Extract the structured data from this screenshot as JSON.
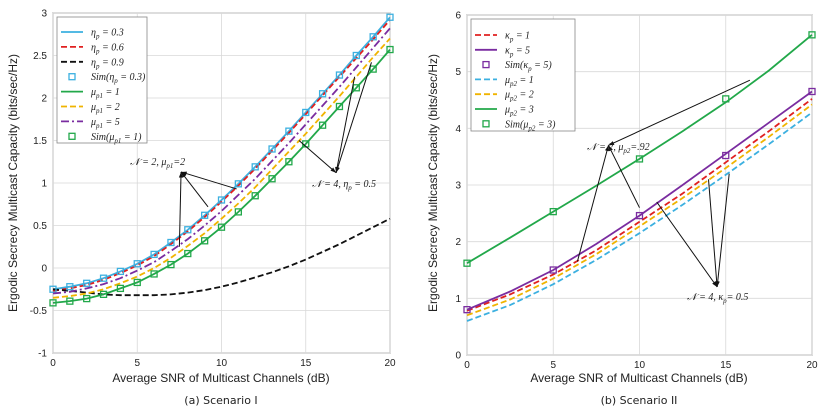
{
  "colors": {
    "eta03": "#3cb0e0",
    "eta06": "#e02020",
    "eta09": "#111111",
    "mu1": "#22a84a",
    "mu2": "#f0b400",
    "mu5": "#7a2ca0",
    "kappa1": "#e02020",
    "kappa5": "#7a2ca0",
    "mu2_1": "#3cb0e0",
    "mu2_2": "#f0b400",
    "mu2_3": "#22a84a"
  },
  "panels": {
    "left": {
      "caption": "(a) Scenario I",
      "ylabel": "Ergodic Secrecy Multicast Capacity (bits/sec/Hz)",
      "xlabel": "Average SNR of Multicast Channels (dB)",
      "annotation_a": "𝒩 = 2, μ",
      "annotation_a_sub": "p1",
      "annotation_a_tail": "=2",
      "annotation_b": "𝒩 = 4, η",
      "annotation_b_sub": "p",
      "annotation_b_tail": " = 0.5",
      "legend": [
        {
          "pre": "η",
          "sub": "p",
          "post": " = 0.3"
        },
        {
          "pre": "η",
          "sub": "p",
          "post": " = 0.6"
        },
        {
          "pre": "η",
          "sub": "p",
          "post": " = 0.9"
        },
        {
          "pre": "Sim(η",
          "sub": "p",
          "post": " = 0.3)"
        },
        {
          "pre": "μ",
          "sub": "p1",
          "post": " = 1"
        },
        {
          "pre": "μ",
          "sub": "p1",
          "post": " = 2"
        },
        {
          "pre": "μ",
          "sub": "p1",
          "post": " = 5"
        },
        {
          "pre": "Sim(μ",
          "sub": "p1",
          "post": " = 1)"
        }
      ]
    },
    "right": {
      "caption": "(b) Scenario II",
      "ylabel": "Ergodic Secrecy Multicast Capacity (bits/sec/Hz)",
      "xlabel": "Average SNR of Multicast Channels (dB)",
      "annotation_a": "𝒩 = 2, μ",
      "annotation_a_sub": "p2",
      "annotation_a_tail": "=.92",
      "annotation_b": "𝒩 = 4, κ",
      "annotation_b_sub": "p",
      "annotation_b_tail": "= 0.5",
      "legend": [
        {
          "pre": "κ",
          "sub": "p",
          "post": " = 1"
        },
        {
          "pre": "κ",
          "sub": "p",
          "post": " = 5"
        },
        {
          "pre": "Sim(κ",
          "sub": "p",
          "post": " = 5)"
        },
        {
          "pre": "μ",
          "sub": "p2",
          "post": " = 1"
        },
        {
          "pre": "μ",
          "sub": "p2",
          "post": " = 2"
        },
        {
          "pre": "μ",
          "sub": "p2",
          "post": " = 3"
        },
        {
          "pre": "Sim(μ",
          "sub": "p2",
          "post": " = 3)"
        }
      ]
    }
  },
  "chart_data": [
    {
      "type": "line",
      "title": "(a) Scenario I",
      "xlabel": "Average SNR of Multicast Channels (dB)",
      "ylabel": "Ergodic Secrecy Multicast Capacity (bits/sec/Hz)",
      "xlim": [
        0,
        20
      ],
      "ylim": [
        -1,
        3
      ],
      "xticks": [
        0,
        5,
        10,
        15,
        20
      ],
      "yticks": [
        -1,
        -0.5,
        0,
        0.5,
        1,
        1.5,
        2,
        2.5,
        3
      ],
      "x": [
        0,
        1,
        2,
        3,
        4,
        5,
        6,
        7,
        8,
        9,
        10,
        11,
        12,
        13,
        14,
        15,
        16,
        17,
        18,
        19,
        20
      ],
      "series": [
        {
          "name": "eta_p = 0.3",
          "style": "solid",
          "color_key": "eta03",
          "values": [
            -0.25,
            -0.22,
            -0.18,
            -0.12,
            -0.04,
            0.05,
            0.16,
            0.3,
            0.45,
            0.62,
            0.8,
            0.99,
            1.19,
            1.4,
            1.61,
            1.83,
            2.05,
            2.27,
            2.5,
            2.72,
            2.95
          ]
        },
        {
          "name": "eta_p = 0.6",
          "style": "dash",
          "color_key": "eta06",
          "values": [
            -0.27,
            -0.24,
            -0.2,
            -0.14,
            -0.06,
            0.03,
            0.14,
            0.28,
            0.43,
            0.6,
            0.78,
            0.97,
            1.17,
            1.38,
            1.59,
            1.81,
            2.03,
            2.25,
            2.47,
            2.69,
            2.92
          ]
        },
        {
          "name": "eta_p = 0.9",
          "style": "dash",
          "color_key": "eta09",
          "values": [
            -0.25,
            -0.27,
            -0.29,
            -0.31,
            -0.32,
            -0.32,
            -0.32,
            -0.31,
            -0.29,
            -0.26,
            -0.22,
            -0.17,
            -0.11,
            -0.05,
            0.02,
            0.1,
            0.19,
            0.28,
            0.38,
            0.48,
            0.58
          ]
        },
        {
          "name": "Sim(eta_p = 0.3)",
          "style": "marker",
          "color_key": "eta03",
          "values": [
            -0.25,
            -0.22,
            -0.18,
            -0.12,
            -0.04,
            0.05,
            0.16,
            0.3,
            0.45,
            0.62,
            0.8,
            0.99,
            1.19,
            1.4,
            1.61,
            1.83,
            2.05,
            2.27,
            2.5,
            2.72,
            2.95
          ]
        },
        {
          "name": "mu_p1 = 1",
          "style": "solid",
          "color_key": "mu1",
          "values": [
            -0.41,
            -0.39,
            -0.36,
            -0.31,
            -0.24,
            -0.17,
            -0.07,
            0.04,
            0.17,
            0.32,
            0.48,
            0.66,
            0.85,
            1.05,
            1.25,
            1.46,
            1.68,
            1.9,
            2.12,
            2.34,
            2.57
          ]
        },
        {
          "name": "mu_p1 = 2",
          "style": "dash",
          "color_key": "mu2",
          "values": [
            -0.35,
            -0.33,
            -0.3,
            -0.25,
            -0.18,
            -0.1,
            0.0,
            0.12,
            0.26,
            0.41,
            0.58,
            0.76,
            0.95,
            1.16,
            1.37,
            1.58,
            1.8,
            2.02,
            2.25,
            2.48,
            2.7
          ]
        },
        {
          "name": "mu_p1 = 5",
          "style": "dashdot",
          "color_key": "mu5",
          "values": [
            -0.3,
            -0.28,
            -0.24,
            -0.19,
            -0.12,
            -0.03,
            0.07,
            0.2,
            0.34,
            0.5,
            0.67,
            0.86,
            1.05,
            1.26,
            1.47,
            1.69,
            1.91,
            2.13,
            2.36,
            2.59,
            2.82
          ]
        },
        {
          "name": "Sim(mu_p1 = 1)",
          "style": "marker",
          "color_key": "mu1",
          "values": [
            -0.41,
            -0.39,
            -0.36,
            -0.31,
            -0.24,
            -0.17,
            -0.07,
            0.04,
            0.17,
            0.32,
            0.48,
            0.66,
            0.85,
            1.05,
            1.25,
            1.46,
            1.68,
            1.9,
            2.12,
            2.34,
            2.57
          ]
        }
      ],
      "annotations": [
        {
          "text": "N = 2, mu_p1=2",
          "anchor": [
            7.6,
            1.13
          ],
          "targets": [
            [
              7.5,
              0.25
            ],
            [
              9.2,
              0.72
            ],
            [
              10.9,
              0.93
            ]
          ]
        },
        {
          "text": "N = 4, eta_p = 0.5",
          "anchor": [
            16.8,
            1.12
          ],
          "targets": [
            [
              14.6,
              1.5
            ],
            [
              17.9,
              2.25
            ],
            [
              18.9,
              2.42
            ]
          ]
        }
      ]
    },
    {
      "type": "line",
      "title": "(b) Scenario II",
      "xlabel": "Average SNR of Multicast Channels (dB)",
      "ylabel": "Ergodic Secrecy Multicast Capacity (bits/sec/Hz)",
      "xlim": [
        0,
        20
      ],
      "ylim": [
        0,
        6
      ],
      "xticks": [
        0,
        5,
        10,
        15,
        20
      ],
      "yticks": [
        0,
        1,
        2,
        3,
        4,
        5,
        6
      ],
      "x": [
        0,
        2.5,
        5,
        7.5,
        10,
        12.5,
        15,
        17.5,
        20
      ],
      "series": [
        {
          "name": "kappa_p = 1",
          "style": "dash",
          "color_key": "kappa1",
          "values": [
            0.78,
            1.07,
            1.42,
            1.85,
            2.35,
            2.85,
            3.4,
            3.95,
            4.52
          ]
        },
        {
          "name": "kappa_p = 5",
          "style": "solid",
          "color_key": "kappa5",
          "values": [
            0.8,
            1.12,
            1.5,
            1.96,
            2.46,
            3.0,
            3.55,
            4.1,
            4.65
          ]
        },
        {
          "name": "Sim(kappa_p = 5)",
          "style": "marker",
          "color_key": "kappa5",
          "x": [
            0,
            5,
            10,
            15,
            20
          ],
          "values": [
            0.8,
            1.5,
            2.46,
            3.52,
            4.65
          ]
        },
        {
          "name": "mu_p2 = 1",
          "style": "dash",
          "color_key": "mu2_1",
          "values": [
            0.6,
            0.88,
            1.25,
            1.68,
            2.15,
            2.65,
            3.18,
            3.72,
            4.28
          ]
        },
        {
          "name": "mu_p2 = 2",
          "style": "dash",
          "color_key": "mu2_2",
          "values": [
            0.7,
            0.98,
            1.35,
            1.78,
            2.27,
            2.77,
            3.3,
            3.85,
            4.42
          ]
        },
        {
          "name": "mu_p2 = 3",
          "style": "solid",
          "color_key": "mu2_3",
          "values": [
            1.62,
            2.07,
            2.53,
            2.99,
            3.46,
            3.95,
            4.46,
            5.02,
            5.65
          ]
        },
        {
          "name": "Sim(mu_p2 = 3)",
          "style": "marker",
          "color_key": "mu2_3",
          "x": [
            0,
            5,
            10,
            15,
            20
          ],
          "values": [
            1.62,
            2.53,
            3.46,
            4.52,
            5.65
          ]
        }
      ],
      "annotations": [
        {
          "text": "N = 2, mu_p2=.92",
          "anchor": [
            8.2,
            3.7
          ],
          "targets": [
            [
              6.4,
              1.65
            ],
            [
              10.0,
              2.6
            ],
            [
              16.4,
              4.85
            ]
          ]
        },
        {
          "text": "N = 4, kappa_p= 0.5",
          "anchor": [
            14.5,
            1.2
          ],
          "targets": [
            [
              11.0,
              2.7
            ],
            [
              14.0,
              3.1
            ],
            [
              15.2,
              3.2
            ]
          ]
        }
      ]
    }
  ]
}
